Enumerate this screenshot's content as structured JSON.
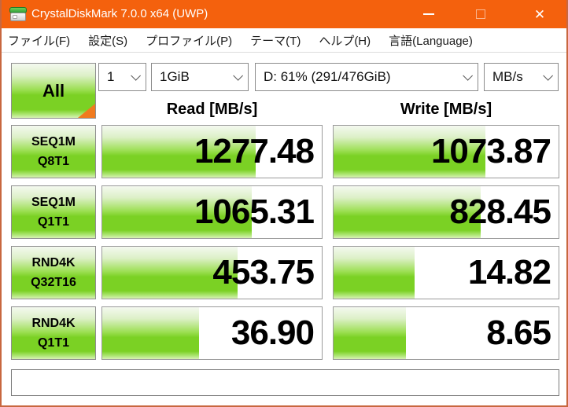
{
  "window": {
    "title": "CrystalDiskMark 7.0.0 x64 (UWP)",
    "controls": {
      "minimize": "minimize",
      "maximize": "maximize",
      "close": "close"
    }
  },
  "menu": {
    "items": [
      {
        "label": "ファイル(F)"
      },
      {
        "label": "設定(S)"
      },
      {
        "label": "プロファイル(P)"
      },
      {
        "label": "テーマ(T)"
      },
      {
        "label": "ヘルプ(H)"
      },
      {
        "label": "言語(Language)"
      }
    ]
  },
  "toolbar": {
    "all_button_label": "All",
    "test_count": {
      "value": "1"
    },
    "test_size": {
      "value": "1GiB"
    },
    "target_drive": {
      "value": "D: 61% (291/476GiB)"
    },
    "unit": {
      "value": "MB/s"
    }
  },
  "results": {
    "read_header": "Read [MB/s]",
    "write_header": "Write [MB/s]",
    "rows": [
      {
        "label1": "SEQ1M",
        "label2": "Q8T1",
        "read": "1277.48",
        "write": "1073.87",
        "read_fill": 0.7,
        "write_fill": 0.675
      },
      {
        "label1": "SEQ1M",
        "label2": "Q1T1",
        "read": "1065.31",
        "write": "828.45",
        "read_fill": 0.68,
        "write_fill": 0.655
      },
      {
        "label1": "RND4K",
        "label2": "Q32T16",
        "read": "453.75",
        "write": "14.82",
        "read_fill": 0.615,
        "write_fill": 0.36
      },
      {
        "label1": "RND4K",
        "label2": "Q1T1",
        "read": "36.90",
        "write": "8.65",
        "read_fill": 0.44,
        "write_fill": 0.32
      }
    ]
  },
  "status_bar": {
    "text": ""
  },
  "colors": {
    "titlebar_orange": "#f4610d",
    "window_border": "#c8673f",
    "bar_green": "#7bd124",
    "corner_triangle_orange": "#f07a1e"
  }
}
